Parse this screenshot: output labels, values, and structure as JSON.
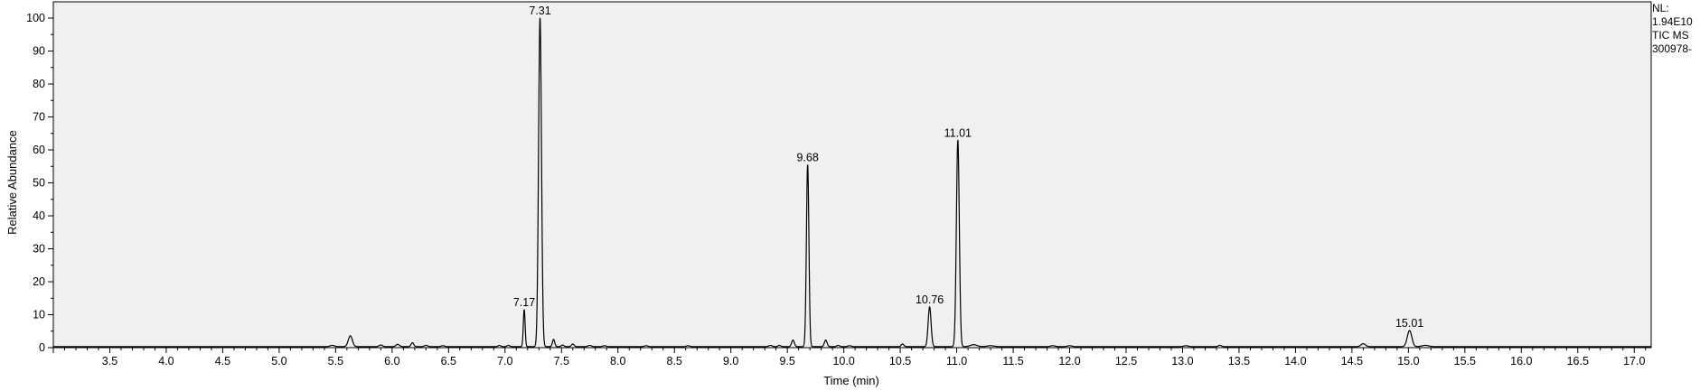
{
  "chart_data": {
    "type": "line",
    "xlabel": "Time (min)",
    "ylabel": "Relative Abundance",
    "xlim": [
      3.0,
      17.15
    ],
    "ylim": [
      0,
      100
    ],
    "x_ticks": [
      3.5,
      4.0,
      4.5,
      5.0,
      5.5,
      6.0,
      6.5,
      7.0,
      7.5,
      8.0,
      8.5,
      9.0,
      9.5,
      10.0,
      10.5,
      11.0,
      11.5,
      12.0,
      12.5,
      13.0,
      13.5,
      14.0,
      14.5,
      15.0,
      15.5,
      16.0,
      16.5,
      17.0
    ],
    "x_tick_labels": [
      "3.5",
      "4.0",
      "4.5",
      "5.0",
      "5.5",
      "6.0",
      "6.5",
      "7.0",
      "7.5",
      "8.0",
      "8.5",
      "9.0",
      "9.5",
      "10.0",
      "10.5",
      "11.0",
      "11.5",
      "12.0",
      "12.5",
      "13.0",
      "13.5",
      "14.0",
      "14.5",
      "15.0",
      "15.5",
      "16.0",
      "16.5",
      "17.0"
    ],
    "x_minor_step": 0.1,
    "y_ticks": [
      0,
      10,
      20,
      30,
      40,
      50,
      60,
      70,
      80,
      90,
      100
    ],
    "y_tick_labels": [
      "0",
      "10",
      "20",
      "30",
      "40",
      "50",
      "60",
      "70",
      "80",
      "90",
      "100"
    ],
    "y_minor_step": 5,
    "grid": false,
    "line_color": "#000000",
    "plot_background": "#f0f0f0",
    "baseline": 0.3,
    "peaks": [
      {
        "rt": 5.47,
        "height": 0.4,
        "width": 0.02
      },
      {
        "rt": 5.63,
        "height": 3.3,
        "width": 0.018
      },
      {
        "rt": 5.9,
        "height": 0.5,
        "width": 0.015
      },
      {
        "rt": 6.05,
        "height": 0.7,
        "width": 0.015
      },
      {
        "rt": 6.18,
        "height": 1.2,
        "width": 0.012
      },
      {
        "rt": 6.3,
        "height": 0.4,
        "width": 0.015
      },
      {
        "rt": 6.45,
        "height": 0.3,
        "width": 0.015
      },
      {
        "rt": 6.95,
        "height": 0.4,
        "width": 0.012
      },
      {
        "rt": 7.03,
        "height": 0.4,
        "width": 0.012
      },
      {
        "rt": 7.17,
        "height": 11.2,
        "width": 0.008
      },
      {
        "rt": 7.31,
        "height": 99.7,
        "width": 0.013
      },
      {
        "rt": 7.43,
        "height": 2.2,
        "width": 0.01
      },
      {
        "rt": 7.51,
        "height": 0.5,
        "width": 0.012
      },
      {
        "rt": 7.6,
        "height": 0.8,
        "width": 0.012
      },
      {
        "rt": 7.75,
        "height": 0.4,
        "width": 0.015
      },
      {
        "rt": 7.88,
        "height": 0.3,
        "width": 0.015
      },
      {
        "rt": 8.25,
        "height": 0.3,
        "width": 0.015
      },
      {
        "rt": 8.62,
        "height": 0.3,
        "width": 0.015
      },
      {
        "rt": 9.35,
        "height": 0.4,
        "width": 0.015
      },
      {
        "rt": 9.43,
        "height": 0.4,
        "width": 0.012
      },
      {
        "rt": 9.55,
        "height": 2.0,
        "width": 0.012
      },
      {
        "rt": 9.68,
        "height": 55.2,
        "width": 0.011
      },
      {
        "rt": 9.84,
        "height": 2.0,
        "width": 0.012
      },
      {
        "rt": 9.95,
        "height": 0.4,
        "width": 0.012
      },
      {
        "rt": 10.05,
        "height": 0.3,
        "width": 0.015
      },
      {
        "rt": 10.52,
        "height": 0.8,
        "width": 0.012
      },
      {
        "rt": 10.76,
        "height": 12.1,
        "width": 0.013
      },
      {
        "rt": 11.01,
        "height": 62.6,
        "width": 0.013
      },
      {
        "rt": 11.15,
        "height": 0.6,
        "width": 0.03
      },
      {
        "rt": 11.3,
        "height": 0.3,
        "width": 0.03
      },
      {
        "rt": 11.85,
        "height": 0.3,
        "width": 0.02
      },
      {
        "rt": 12.0,
        "height": 0.3,
        "width": 0.02
      },
      {
        "rt": 13.03,
        "height": 0.3,
        "width": 0.02
      },
      {
        "rt": 13.33,
        "height": 0.4,
        "width": 0.015
      },
      {
        "rt": 14.6,
        "height": 0.9,
        "width": 0.02
      },
      {
        "rt": 15.01,
        "height": 4.9,
        "width": 0.02
      },
      {
        "rt": 15.15,
        "height": 0.4,
        "width": 0.03
      }
    ],
    "peak_labels": [
      {
        "text": "7.17",
        "x": 7.17,
        "y": 11.2
      },
      {
        "text": "7.31",
        "x": 7.31,
        "y": 99.7
      },
      {
        "text": "9.68",
        "x": 9.68,
        "y": 55.2
      },
      {
        "text": "10.76",
        "x": 10.76,
        "y": 12.1
      },
      {
        "text": "11.01",
        "x": 11.01,
        "y": 62.6
      },
      {
        "text": "15.01",
        "x": 15.01,
        "y": 4.9
      }
    ]
  },
  "info_panel": {
    "line1": "NL:",
    "line2": "1.94E10",
    "line3": "TIC  MS",
    "line4": "300978-"
  }
}
